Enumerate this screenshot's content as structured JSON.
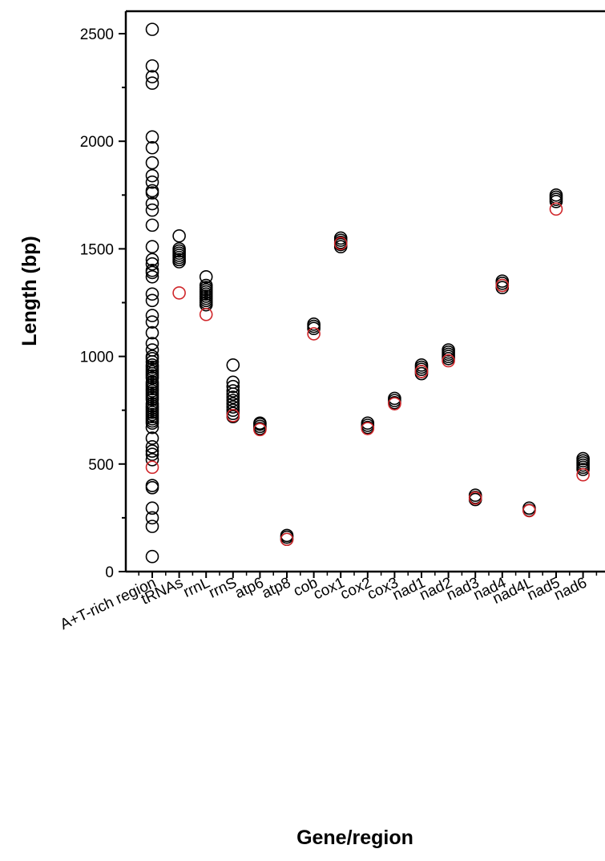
{
  "chart_data": {
    "type": "scatter",
    "title": "",
    "xlabel": "Gene/region",
    "ylabel": "Length (bp)",
    "ylim": [
      0,
      2600
    ],
    "y_ticks": [
      0,
      500,
      1000,
      1500,
      2000,
      2500
    ],
    "grid": false,
    "legend": "none",
    "colors": {
      "series": "#000000",
      "highlight": "#d0262a"
    },
    "categories": [
      "A+T-rich region",
      "tRNAs",
      "rrnL",
      "rrnS",
      "atp6",
      "atp8",
      "cob",
      "cox1",
      "cox2",
      "cox3",
      "nad1",
      "nad2",
      "nad3",
      "nad4",
      "nad4L",
      "nad5",
      "nad6"
    ],
    "series": [
      {
        "points": [
          {
            "cat": "A+T-rich region",
            "values": [
              70,
              210,
              250,
              295,
              390,
              400,
              520,
              545,
              560,
              580,
              620,
              670,
              690,
              700,
              710,
              720,
              730,
              740,
              750,
              760,
              770,
              780,
              800,
              810,
              820,
              830,
              840,
              850,
              860,
              870,
              880,
              900,
              910,
              920,
              930,
              940,
              950,
              960,
              975,
              990,
              1000,
              1030,
              1060,
              1110,
              1160,
              1190,
              1260,
              1290,
              1370,
              1390,
              1400,
              1430,
              1450,
              1510,
              1610,
              1680,
              1710,
              1760,
              1770,
              1810,
              1840,
              1900,
              1970,
              2020,
              2270,
              2300,
              2350,
              2520
            ]
          },
          {
            "cat": "tRNAs",
            "values": [
              1440,
              1450,
              1460,
              1470,
              1480,
              1490,
              1500,
              1560
            ]
          },
          {
            "cat": "rrnL",
            "values": [
              1240,
              1250,
              1260,
              1270,
              1280,
              1290,
              1300,
              1310,
              1320,
              1330,
              1370
            ]
          },
          {
            "cat": "rrnS",
            "values": [
              720,
              735,
              750,
              765,
              780,
              795,
              810,
              825,
              840,
              860,
              880,
              960
            ]
          },
          {
            "cat": "atp6",
            "values": [
              665,
              675,
              685,
              690
            ]
          },
          {
            "cat": "atp8",
            "values": [
              150,
              160,
              168
            ]
          },
          {
            "cat": "cob",
            "values": [
              1130,
              1140,
              1150
            ]
          },
          {
            "cat": "cox1",
            "values": [
              1510,
              1520,
              1530,
              1540,
              1550
            ]
          },
          {
            "cat": "cox2",
            "values": [
              670,
              680,
              690
            ]
          },
          {
            "cat": "cox3",
            "values": [
              785,
              795,
              805
            ]
          },
          {
            "cat": "nad1",
            "values": [
              920,
              930,
              940,
              950,
              960
            ]
          },
          {
            "cat": "nad2",
            "values": [
              990,
              1000,
              1010,
              1020,
              1030
            ]
          },
          {
            "cat": "nad3",
            "values": [
              335,
              345,
              355
            ]
          },
          {
            "cat": "nad4",
            "values": [
              1320,
              1330,
              1340,
              1350
            ]
          },
          {
            "cat": "nad4L",
            "values": [
              285,
              295
            ]
          },
          {
            "cat": "nad5",
            "values": [
              1720,
              1730,
              1740,
              1750
            ]
          },
          {
            "cat": "nad6",
            "values": [
              475,
              485,
              495,
              505,
              515,
              525
            ]
          }
        ]
      },
      {
        "points": [
          {
            "cat": "A+T-rich region",
            "values": [
              485
            ]
          },
          {
            "cat": "tRNAs",
            "values": [
              1295
            ]
          },
          {
            "cat": "rrnL",
            "values": [
              1195
            ]
          },
          {
            "cat": "rrnS",
            "values": [
              725
            ]
          },
          {
            "cat": "atp6",
            "values": [
              660
            ]
          },
          {
            "cat": "atp8",
            "values": [
              150
            ]
          },
          {
            "cat": "cob",
            "values": [
              1105
            ]
          },
          {
            "cat": "cox1",
            "values": [
              1525
            ]
          },
          {
            "cat": "cox2",
            "values": [
              665
            ]
          },
          {
            "cat": "cox3",
            "values": [
              780
            ]
          },
          {
            "cat": "nad1",
            "values": [
              930
            ]
          },
          {
            "cat": "nad2",
            "values": [
              980
            ]
          },
          {
            "cat": "nad3",
            "values": [
              342
            ]
          },
          {
            "cat": "nad4",
            "values": [
              1330
            ]
          },
          {
            "cat": "nad4L",
            "values": [
              283
            ]
          },
          {
            "cat": "nad5",
            "values": [
              1685
            ]
          },
          {
            "cat": "nad6",
            "values": [
              450
            ]
          }
        ]
      }
    ]
  }
}
